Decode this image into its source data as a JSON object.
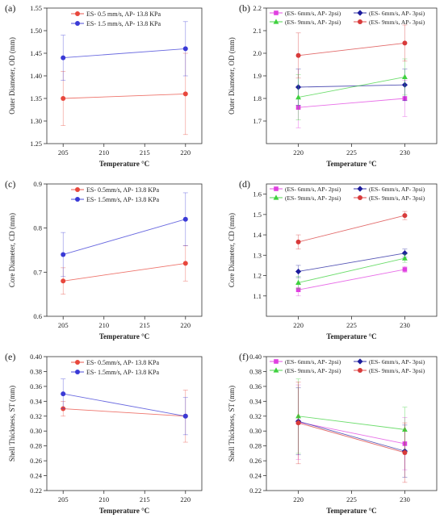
{
  "chart_data": [
    {
      "panel": "(a)",
      "type": "line",
      "xlabel": "Temperature °C",
      "ylabel": "Outer Diameter, OD (mm)",
      "xlim": [
        203,
        222
      ],
      "ylim": [
        1.25,
        1.55
      ],
      "xticks": [
        205,
        210,
        215,
        220
      ],
      "yticks": [
        1.25,
        1.3,
        1.35,
        1.4,
        1.45,
        1.5,
        1.55
      ],
      "grid": false,
      "legend": "top-center",
      "series": [
        {
          "name": "ES- 0.5 mm/s, AP- 13.8 KPa",
          "color": "#e8473c",
          "x": [
            205,
            220
          ],
          "y": [
            1.35,
            1.36
          ],
          "err": [
            0.06,
            0.09
          ]
        },
        {
          "name": "ES- 1.5 mm/s, AP- 13.8 KPa",
          "color": "#3a3ad6",
          "x": [
            205,
            220
          ],
          "y": [
            1.44,
            1.46
          ],
          "err": [
            0.05,
            0.06
          ]
        }
      ]
    },
    {
      "panel": "(b)",
      "type": "line",
      "xlabel": "Temperature °C",
      "ylabel": "Outer Diameter, OD (mm)",
      "xlim": [
        217,
        233
      ],
      "ylim": [
        1.6,
        2.2
      ],
      "xticks": [
        220,
        225,
        230
      ],
      "yticks": [
        1.7,
        1.8,
        1.9,
        2.0,
        2.1,
        2.2
      ],
      "grid": false,
      "legend": "top",
      "series": [
        {
          "name": "(ES- 6mm/s, AP- 2psi)",
          "color": "#e040e0",
          "x": [
            220,
            230
          ],
          "y": [
            1.76,
            1.8
          ],
          "err": [
            0.09,
            0.08
          ]
        },
        {
          "name": "(ES- 6mm/s, AP- 3psi)",
          "color": "#1c1c9c",
          "x": [
            220,
            230
          ],
          "y": [
            1.85,
            1.86
          ],
          "err": [
            0.08,
            0.07
          ]
        },
        {
          "name": "(ES- 9mm/s, AP- 2psi)",
          "color": "#3ed13e",
          "x": [
            220,
            230
          ],
          "y": [
            1.805,
            1.895
          ],
          "err": [
            0.1,
            0.08
          ]
        },
        {
          "name": "(ES- 9mm/s, AP- 3psi)",
          "color": "#d83a3a",
          "x": [
            220,
            230
          ],
          "y": [
            1.99,
            2.045
          ],
          "err": [
            0.1,
            0.08
          ]
        }
      ]
    },
    {
      "panel": "(c)",
      "type": "line",
      "xlabel": "Temperature °C",
      "ylabel": "Core Diameter, CD (mm)",
      "xlim": [
        203,
        222
      ],
      "ylim": [
        0.6,
        0.9
      ],
      "xticks": [
        205,
        210,
        215,
        220
      ],
      "yticks": [
        0.6,
        0.7,
        0.8,
        0.9
      ],
      "grid": false,
      "legend": "top-center",
      "series": [
        {
          "name": "ES- 0.5mm/s, AP- 13.8 KPa",
          "color": "#e8473c",
          "x": [
            205,
            220
          ],
          "y": [
            0.68,
            0.72
          ],
          "err": [
            0.03,
            0.04
          ]
        },
        {
          "name": "ES- 1.5mm/s, AP- 13.8 KPa",
          "color": "#3a3ad6",
          "x": [
            205,
            220
          ],
          "y": [
            0.74,
            0.82
          ],
          "err": [
            0.05,
            0.06
          ]
        }
      ]
    },
    {
      "panel": "(d)",
      "type": "line",
      "xlabel": "Temperature °C",
      "ylabel": "Core Diameter, CD (mm)",
      "xlim": [
        217,
        233
      ],
      "ylim": [
        1.0,
        1.65
      ],
      "xticks": [
        220,
        225,
        230
      ],
      "yticks": [
        1.1,
        1.2,
        1.3,
        1.4,
        1.5,
        1.6
      ],
      "grid": false,
      "legend": "top",
      "series": [
        {
          "name": "(ES- 6mm/s, AP- 2psi)",
          "color": "#e040e0",
          "x": [
            220,
            230
          ],
          "y": [
            1.13,
            1.23
          ],
          "err": [
            0.03,
            0.015
          ]
        },
        {
          "name": "(ES- 6mm/s, AP- 3psi)",
          "color": "#1c1c9c",
          "x": [
            220,
            230
          ],
          "y": [
            1.22,
            1.31
          ],
          "err": [
            0.03,
            0.02
          ]
        },
        {
          "name": "(ES- 9mm/s, AP- 2psi)",
          "color": "#3ed13e",
          "x": [
            220,
            230
          ],
          "y": [
            1.165,
            1.285
          ],
          "err": [
            0.03,
            0.02
          ]
        },
        {
          "name": "(ES- 9mm/s, AP- 3psi)",
          "color": "#d83a3a",
          "x": [
            220,
            230
          ],
          "y": [
            1.365,
            1.495
          ],
          "err": [
            0.035,
            0.02
          ]
        }
      ]
    },
    {
      "panel": "(e)",
      "type": "line",
      "xlabel": "Temperature °C",
      "ylabel": "Shell Thickness, ST (mm)",
      "xlim": [
        203,
        222
      ],
      "ylim": [
        0.22,
        0.4
      ],
      "xticks": [
        205,
        210,
        215,
        220
      ],
      "yticks": [
        0.22,
        0.24,
        0.26,
        0.28,
        0.3,
        0.32,
        0.34,
        0.36,
        0.38,
        0.4
      ],
      "grid": false,
      "legend": "top-center",
      "series": [
        {
          "name": "ES- 0.5mm/s, AP- 13.8 KPa",
          "color": "#e8473c",
          "x": [
            205,
            220
          ],
          "y": [
            0.33,
            0.32
          ],
          "err": [
            0.01,
            0.035
          ]
        },
        {
          "name": "ES- 1.5mm/s, AP- 13.8 KPa",
          "color": "#3a3ad6",
          "x": [
            205,
            220
          ],
          "y": [
            0.35,
            0.32
          ],
          "err": [
            0.02,
            0.025
          ]
        }
      ]
    },
    {
      "panel": "(f)",
      "type": "line",
      "xlabel": "Temperature °C",
      "ylabel": "Shell Thickness, ST (mm)",
      "xlim": [
        217,
        233
      ],
      "ylim": [
        0.22,
        0.4
      ],
      "xticks": [
        220,
        225,
        230
      ],
      "yticks": [
        0.22,
        0.24,
        0.26,
        0.28,
        0.3,
        0.32,
        0.34,
        0.36,
        0.38,
        0.4
      ],
      "grid": false,
      "legend": "top",
      "series": [
        {
          "name": "(ES- 6mm/s, AP- 2psi)",
          "color": "#e040e0",
          "x": [
            220,
            230
          ],
          "y": [
            0.312,
            0.283
          ],
          "err": [
            0.05,
            0.035
          ]
        },
        {
          "name": "(ES- 6mm/s, AP- 3psi)",
          "color": "#1c1c9c",
          "x": [
            220,
            230
          ],
          "y": [
            0.313,
            0.273
          ],
          "err": [
            0.045,
            0.035
          ]
        },
        {
          "name": "(ES- 9mm/s, AP- 2psi)",
          "color": "#3ed13e",
          "x": [
            220,
            230
          ],
          "y": [
            0.32,
            0.302
          ],
          "err": [
            0.05,
            0.03
          ]
        },
        {
          "name": "(ES- 9mm/s, AP- 3psi)",
          "color": "#d83a3a",
          "x": [
            220,
            230
          ],
          "y": [
            0.311,
            0.271
          ],
          "err": [
            0.055,
            0.04
          ]
        }
      ]
    }
  ]
}
